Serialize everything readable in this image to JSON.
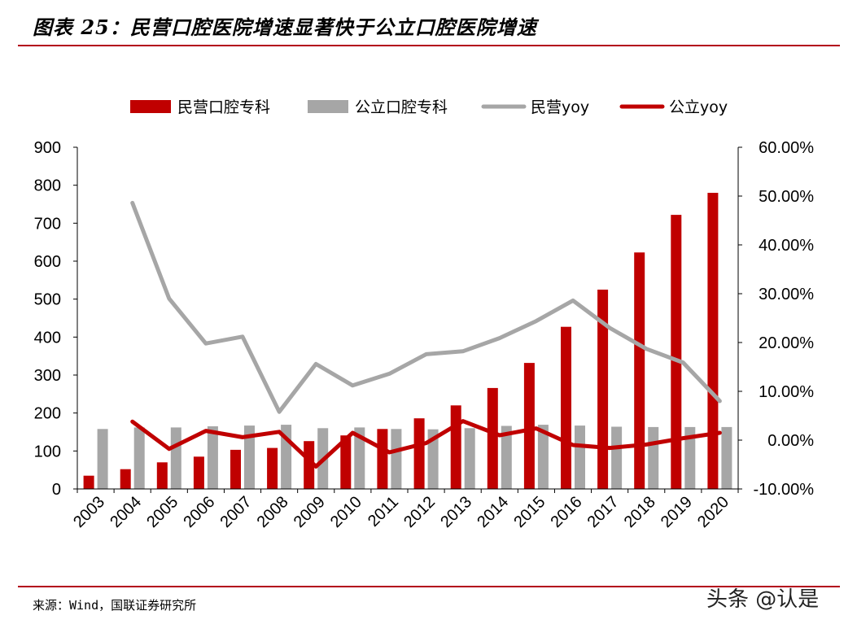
{
  "header": {
    "title": "图表 25：民营口腔医院增速显著快于公立口腔医院增速"
  },
  "footer": {
    "source": "来源：Wind，国联证券研究所",
    "watermark": "头条 @认是"
  },
  "colors": {
    "private": "#c00000",
    "public": "#a6a6a6",
    "rule": "#b3001b"
  },
  "chart_data": {
    "type": "bar",
    "categories": [
      "2003",
      "2004",
      "2005",
      "2006",
      "2007",
      "2008",
      "2009",
      "2010",
      "2011",
      "2012",
      "2013",
      "2014",
      "2015",
      "2016",
      "2017",
      "2018",
      "2019",
      "2020"
    ],
    "series": [
      {
        "name": "民营口腔专科",
        "type": "bar",
        "axis": "left",
        "color": "#c00000",
        "values": [
          35,
          52,
          70,
          85,
          103,
          108,
          126,
          141,
          158,
          186,
          220,
          266,
          332,
          427,
          525,
          623,
          722,
          780
        ]
      },
      {
        "name": "公立口腔专科",
        "type": "bar",
        "axis": "left",
        "color": "#a6a6a6",
        "values": [
          158,
          162,
          162,
          165,
          167,
          169,
          160,
          162,
          158,
          157,
          160,
          166,
          169,
          167,
          164,
          163,
          163,
          163
        ]
      },
      {
        "name": "民营yoy",
        "type": "line",
        "axis": "right",
        "color": "#a6a6a6",
        "values": [
          null,
          48.6,
          29.0,
          19.8,
          21.2,
          5.8,
          15.6,
          11.2,
          13.6,
          17.6,
          18.2,
          20.9,
          24.4,
          28.6,
          23.0,
          18.7,
          15.9,
          8.0
        ]
      },
      {
        "name": "公立yoy",
        "type": "line",
        "axis": "right",
        "color": "#c00000",
        "values": [
          null,
          3.8,
          -1.8,
          1.9,
          0.6,
          1.7,
          -5.4,
          1.5,
          -2.5,
          -0.6,
          3.9,
          1.0,
          2.4,
          -1.0,
          -1.6,
          -0.9,
          0.4,
          1.5
        ]
      }
    ],
    "yticks_left": [
      "0",
      "100",
      "200",
      "300",
      "400",
      "500",
      "600",
      "700",
      "800",
      "900"
    ],
    "yticks_right": [
      "-10.00%",
      "0.00%",
      "10.00%",
      "20.00%",
      "30.00%",
      "40.00%",
      "50.00%",
      "60.00%"
    ],
    "ylim_left": [
      0,
      900
    ],
    "ylim_right": [
      -10,
      60
    ],
    "legend_position": "top",
    "grid": false
  }
}
